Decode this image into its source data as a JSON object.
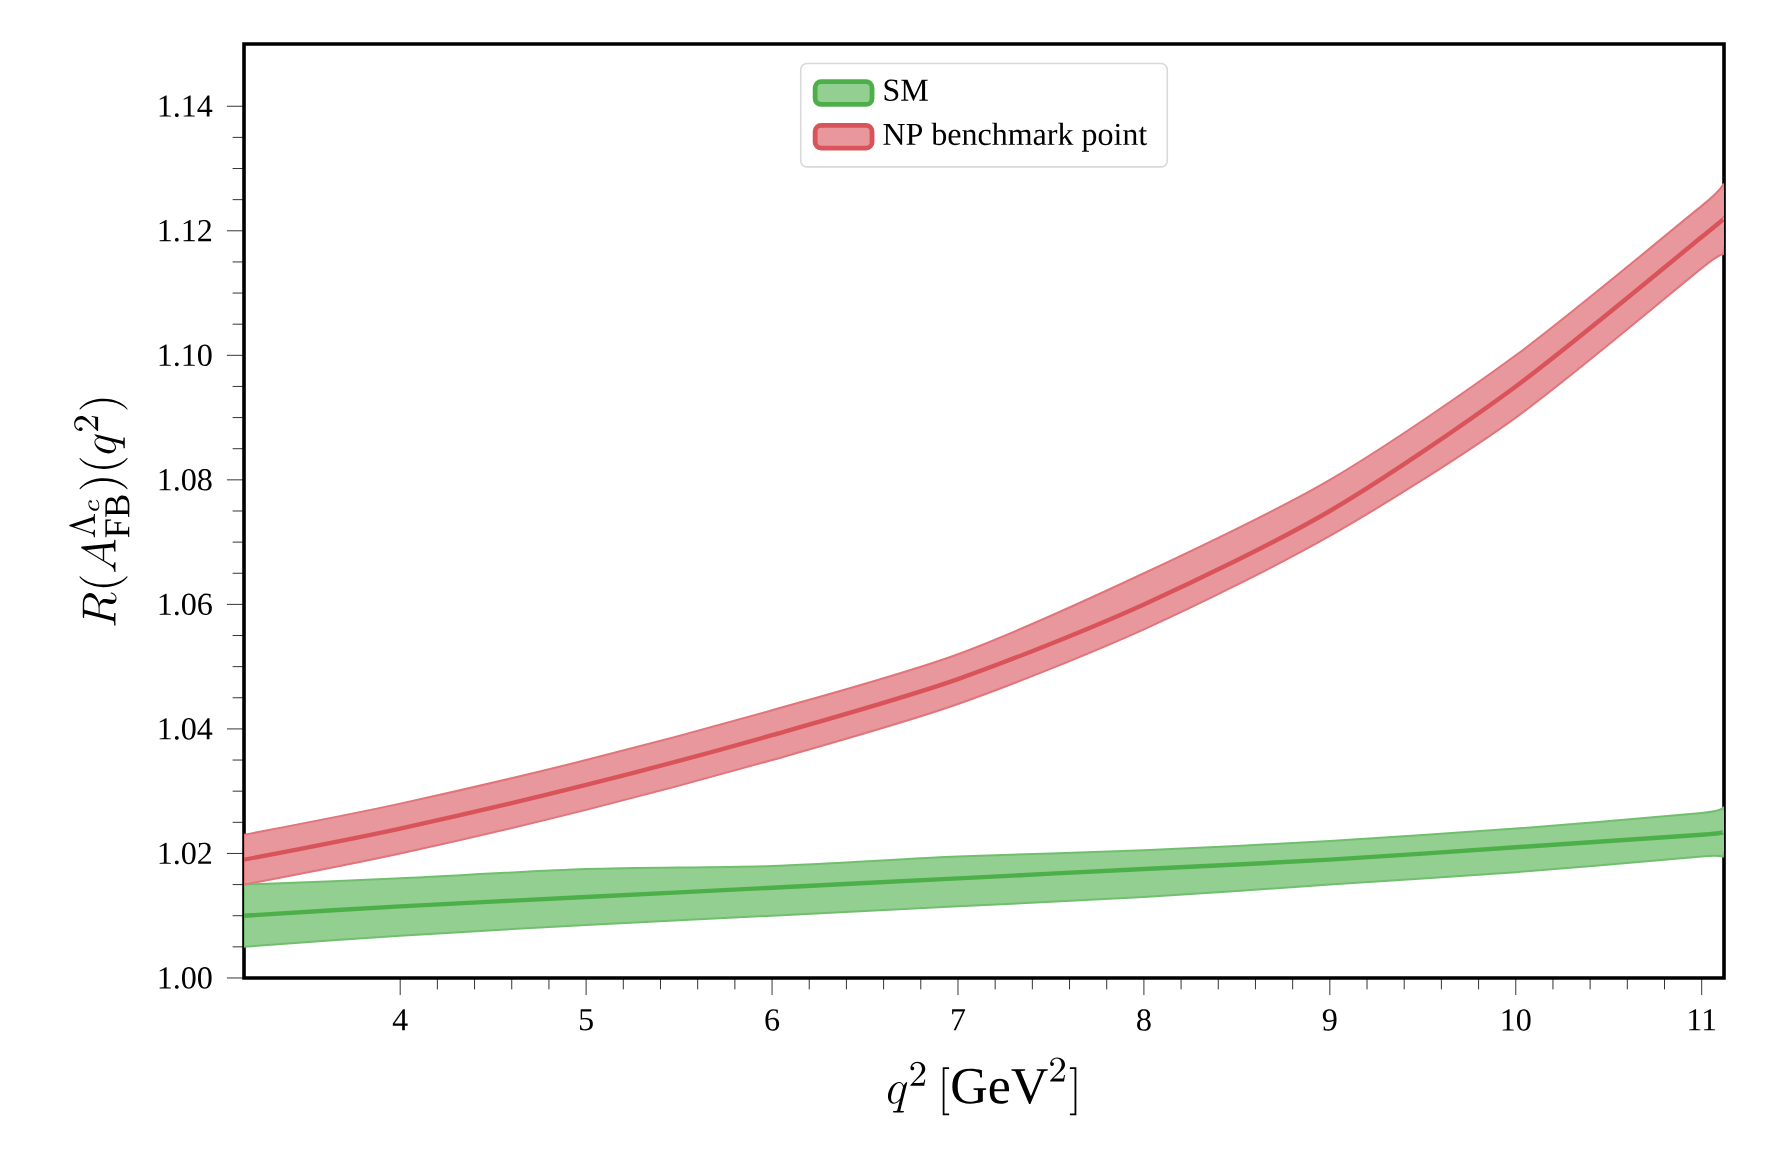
{
  "chart_data": {
    "type": "line",
    "xlabel": "q^2\\,[\\mathrm{GeV}^2]",
    "ylabel": "R(A_{\\mathrm{FB}}^{\\Lambda_c})(q^2)",
    "x": [
      3.16,
      4,
      5,
      6,
      7,
      8,
      9,
      10,
      11,
      11.12
    ],
    "series": [
      {
        "name": "SM",
        "color": "#4daf4a",
        "values": [
          1.01,
          1.0115,
          1.013,
          1.0145,
          1.016,
          1.0175,
          1.019,
          1.021,
          1.023,
          1.0235
        ],
        "lower": [
          1.005,
          1.0068,
          1.0085,
          1.01,
          1.0115,
          1.013,
          1.015,
          1.017,
          1.0195,
          1.02
        ],
        "upper": [
          1.015,
          1.016,
          1.0175,
          1.018,
          1.0195,
          1.0205,
          1.022,
          1.024,
          1.0265,
          1.027
        ]
      },
      {
        "name": "NP benchmark point",
        "color": "#d9535a",
        "values": [
          1.019,
          1.024,
          1.031,
          1.039,
          1.048,
          1.06,
          1.075,
          1.095,
          1.119,
          1.122
        ],
        "lower": [
          1.015,
          1.02,
          1.027,
          1.035,
          1.044,
          1.056,
          1.071,
          1.09,
          1.114,
          1.117
        ],
        "upper": [
          1.023,
          1.028,
          1.035,
          1.043,
          1.052,
          1.065,
          1.08,
          1.1,
          1.124,
          1.127
        ]
      }
    ],
    "xlim": [
      3.16,
      11.12
    ],
    "ylim": [
      1.0,
      1.15
    ],
    "xticks": [
      4,
      5,
      6,
      7,
      8,
      9,
      10,
      11
    ],
    "yticks": [
      {
        "value": 1.0,
        "label": "1.00"
      },
      {
        "value": 1.02,
        "label": "1.02"
      },
      {
        "value": 1.04,
        "label": "1.04"
      },
      {
        "value": 1.06,
        "label": "1.06"
      },
      {
        "value": 1.08,
        "label": "1.08"
      },
      {
        "value": 1.1,
        "label": "1.10"
      },
      {
        "value": 1.12,
        "label": "1.12"
      },
      {
        "value": 1.14,
        "label": "1.14"
      }
    ],
    "legend": "top",
    "grid": false,
    "line_style": "solid",
    "marker": "none"
  }
}
